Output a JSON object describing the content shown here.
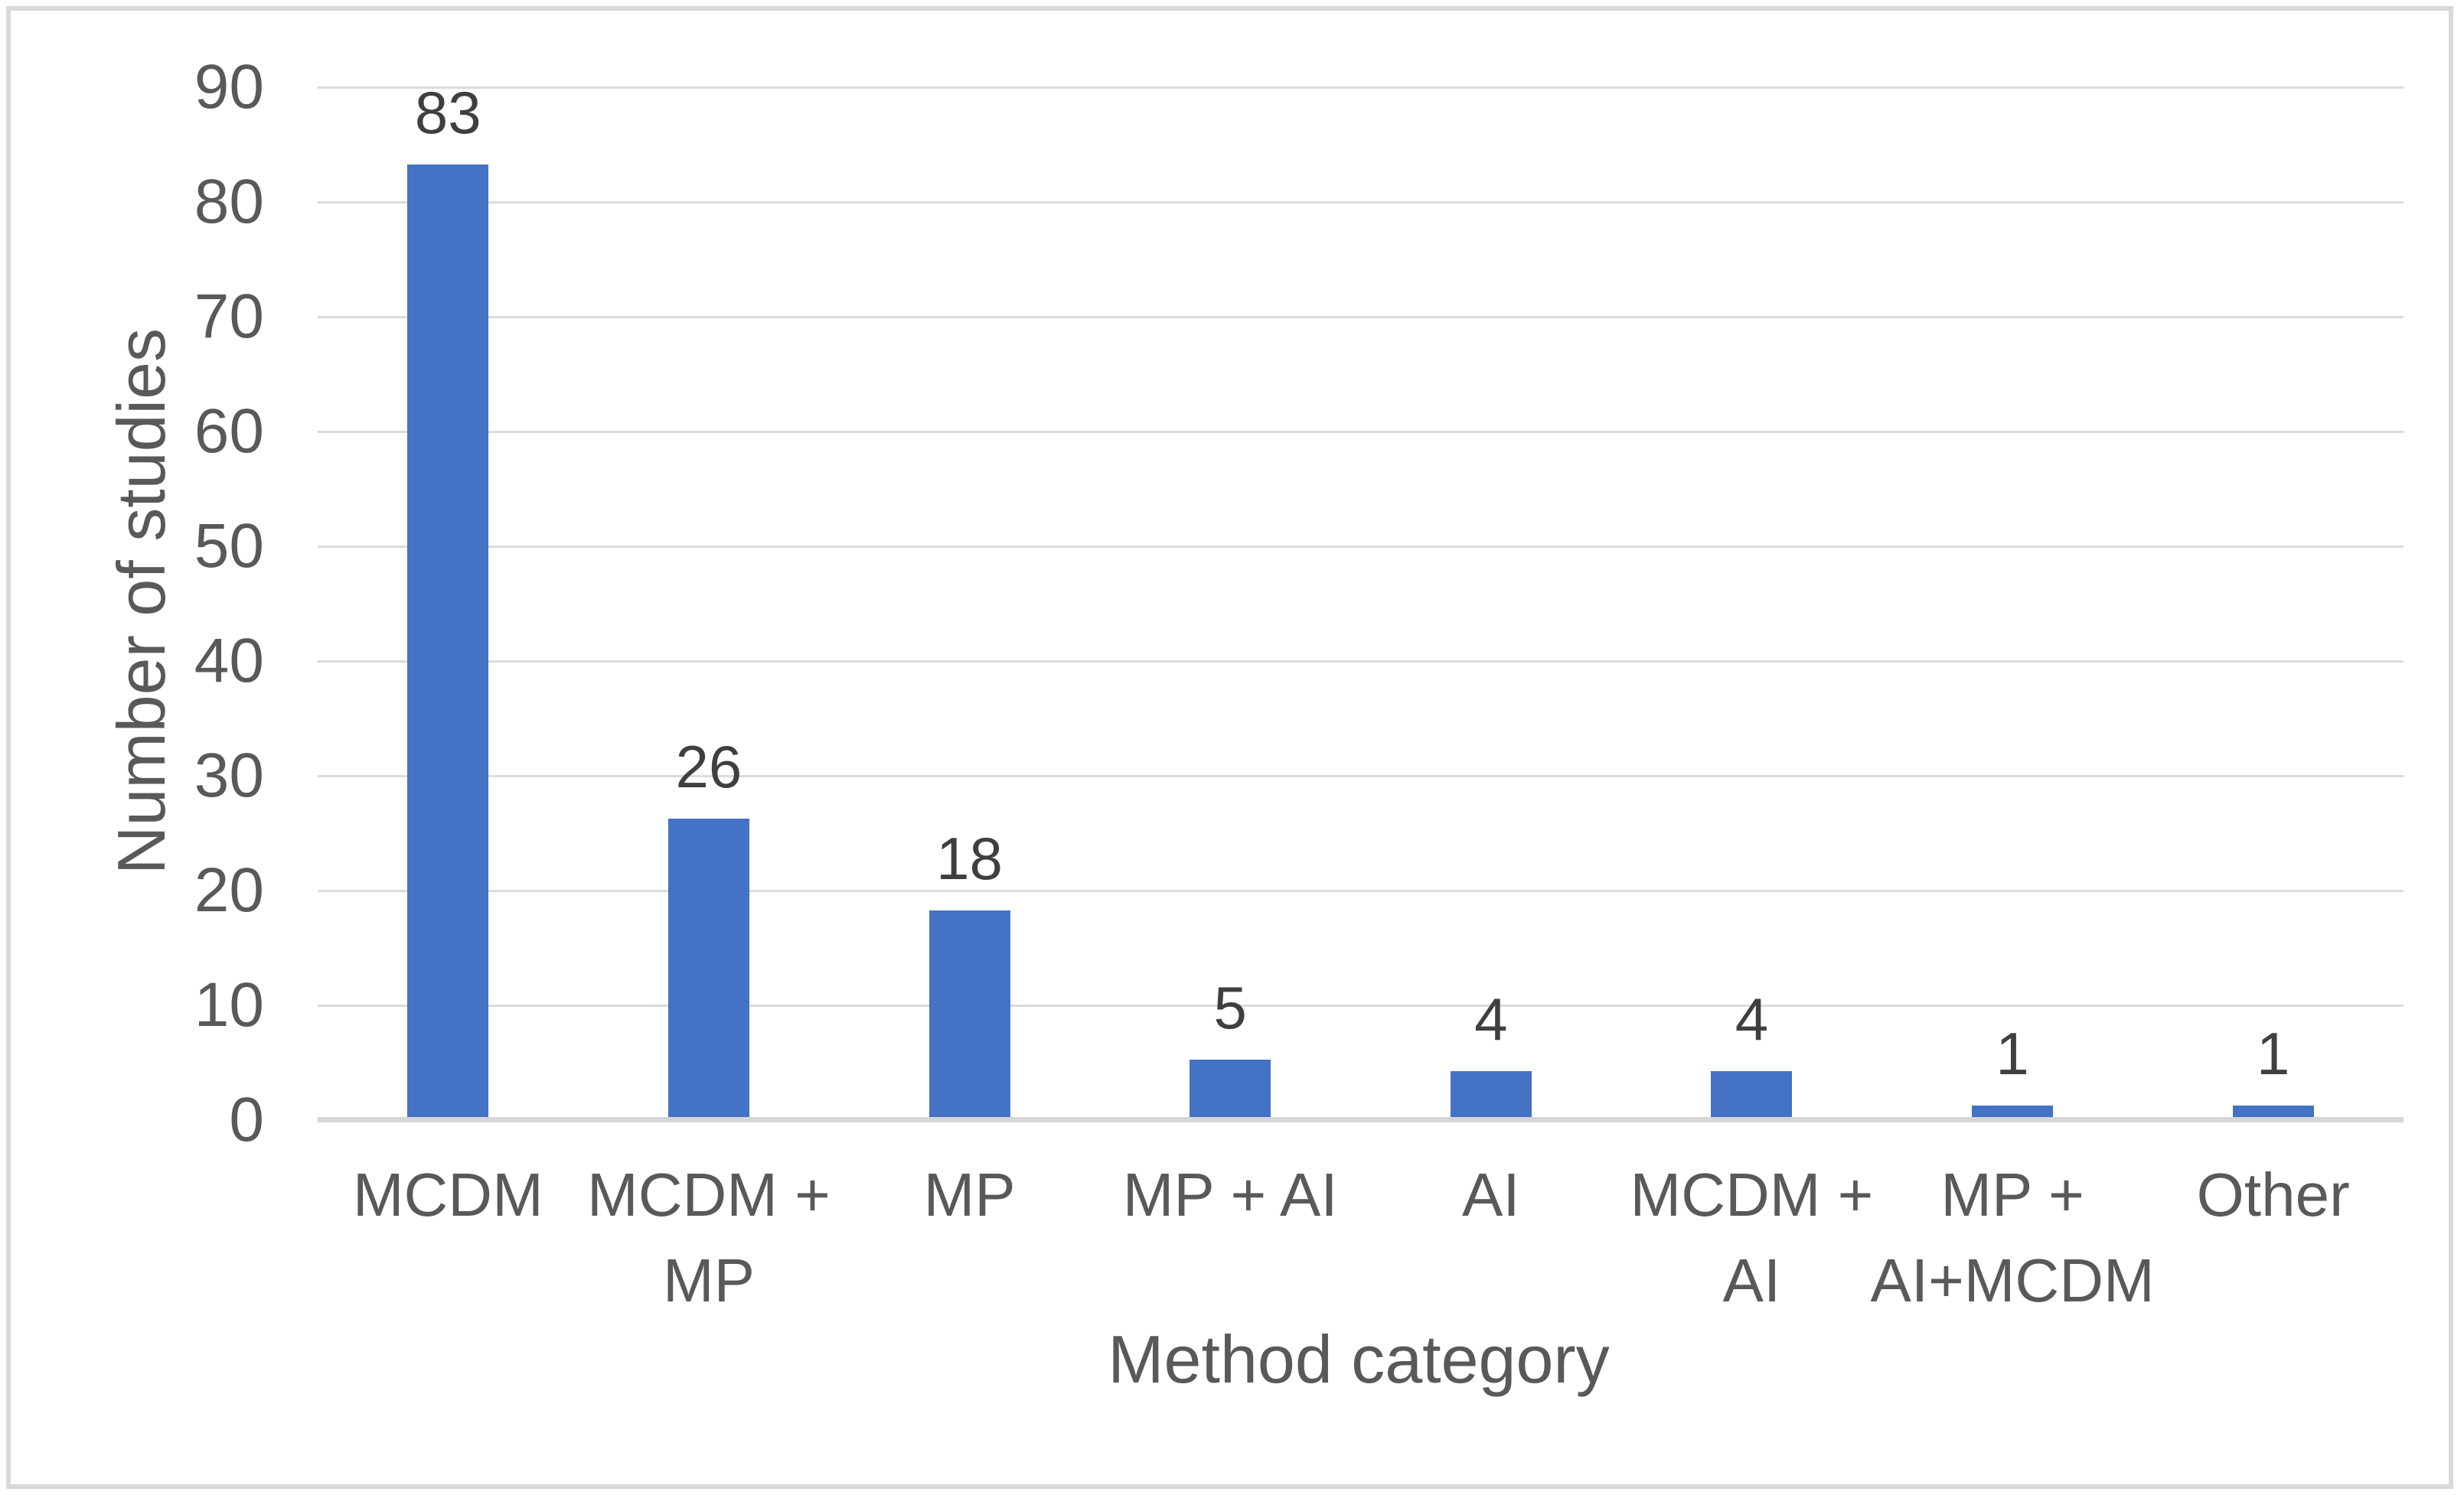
{
  "chart_data": {
    "type": "bar",
    "categories": [
      "MCDM",
      "MCDM +\nMP",
      "MP",
      "MP + AI",
      "AI",
      "MCDM +\nAI",
      "MP +\nAI+MCDM",
      "Other"
    ],
    "values": [
      83,
      26,
      18,
      5,
      4,
      4,
      1,
      1
    ],
    "data_labels": [
      "83",
      "26",
      "18",
      "5",
      "4",
      "4",
      "1",
      "1"
    ],
    "title": "",
    "xlabel": "Method category",
    "ylabel": "Number of studies",
    "ylim": [
      0,
      90
    ],
    "ytick_step": 10,
    "ytick_labels": [
      "0",
      "10",
      "20",
      "30",
      "40",
      "50",
      "60",
      "70",
      "80",
      "90"
    ],
    "grid": true,
    "legend": false,
    "colors": {
      "bar": "#4472C4",
      "gridline": "#dbdbdb",
      "axis_line": "#d6d6d6",
      "axis_text": "#595959",
      "data_label_text": "#3f3f3f",
      "frame_border": "#d9d9d9"
    }
  }
}
